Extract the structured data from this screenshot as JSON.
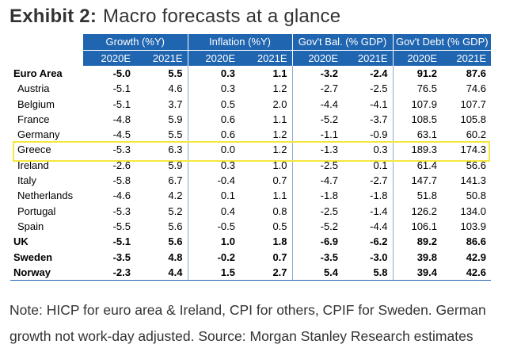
{
  "exhibit": {
    "label": "Exhibit 2",
    "colon": ":",
    "title": "Macro forecasts at a glance"
  },
  "table": {
    "groups": [
      "Growth (%Y)",
      "Inflation (%Y)",
      "Gov't Bal. (% GDP)",
      "Gov't Debt (% GDP)"
    ],
    "years": [
      "2020E",
      "2021E"
    ],
    "rows": [
      {
        "country": "Euro Area",
        "bold": true,
        "indent": false,
        "values": [
          "-5.0",
          "5.5",
          "0.3",
          "1.1",
          "-3.2",
          "-2.4",
          "91.2",
          "87.6"
        ]
      },
      {
        "country": "Austria",
        "bold": false,
        "indent": true,
        "values": [
          "-5.1",
          "4.6",
          "0.3",
          "1.2",
          "-2.7",
          "-2.5",
          "76.5",
          "74.6"
        ]
      },
      {
        "country": "Belgium",
        "bold": false,
        "indent": true,
        "values": [
          "-5.1",
          "3.7",
          "0.5",
          "2.0",
          "-4.4",
          "-4.1",
          "107.9",
          "107.7"
        ]
      },
      {
        "country": "France",
        "bold": false,
        "indent": true,
        "values": [
          "-4.8",
          "5.9",
          "0.6",
          "1.1",
          "-5.2",
          "-3.7",
          "108.5",
          "105.8"
        ]
      },
      {
        "country": "Germany",
        "bold": false,
        "indent": true,
        "values": [
          "-4.5",
          "5.5",
          "0.6",
          "1.2",
          "-1.1",
          "-0.9",
          "63.1",
          "60.2"
        ]
      },
      {
        "country": "Greece",
        "bold": false,
        "indent": true,
        "highlight": true,
        "values": [
          "-5.3",
          "6.3",
          "0.0",
          "1.2",
          "-1.3",
          "0.3",
          "189.3",
          "174.3"
        ]
      },
      {
        "country": "Ireland",
        "bold": false,
        "indent": true,
        "values": [
          "-2.6",
          "5.9",
          "0.3",
          "1.0",
          "-2.5",
          "0.1",
          "61.4",
          "56.6"
        ]
      },
      {
        "country": "Italy",
        "bold": false,
        "indent": true,
        "values": [
          "-5.8",
          "6.7",
          "-0.4",
          "0.7",
          "-4.7",
          "-2.7",
          "147.7",
          "141.3"
        ]
      },
      {
        "country": "Netherlands",
        "bold": false,
        "indent": true,
        "values": [
          "-4.6",
          "4.2",
          "0.1",
          "1.1",
          "-1.8",
          "-1.8",
          "51.8",
          "50.8"
        ]
      },
      {
        "country": "Portugal",
        "bold": false,
        "indent": true,
        "values": [
          "-5.3",
          "5.2",
          "0.4",
          "0.8",
          "-2.5",
          "-1.4",
          "126.2",
          "134.0"
        ]
      },
      {
        "country": "Spain",
        "bold": false,
        "indent": true,
        "values": [
          "-5.5",
          "5.6",
          "-0.5",
          "0.5",
          "-5.2",
          "-4.4",
          "106.1",
          "103.9"
        ]
      },
      {
        "country": "UK",
        "bold": true,
        "indent": false,
        "values": [
          "-5.1",
          "5.6",
          "1.0",
          "1.8",
          "-6.9",
          "-6.2",
          "89.2",
          "86.6"
        ]
      },
      {
        "country": "Sweden",
        "bold": true,
        "indent": false,
        "values": [
          "-3.5",
          "4.8",
          "-0.2",
          "0.7",
          "-3.5",
          "-3.0",
          "39.8",
          "42.9"
        ]
      },
      {
        "country": "Norway",
        "bold": true,
        "indent": false,
        "values": [
          "-2.3",
          "4.4",
          "1.5",
          "2.7",
          "5.4",
          "5.8",
          "39.4",
          "42.6"
        ]
      }
    ]
  },
  "note": "Note: HICP for euro area & Ireland, CPI for others, CPIF for Sweden. German growth not work-day adjusted. Source: Morgan Stanley Research estimates",
  "colors": {
    "header_blue": "#1f65b0",
    "highlight_yellow": "#f5e73f"
  }
}
